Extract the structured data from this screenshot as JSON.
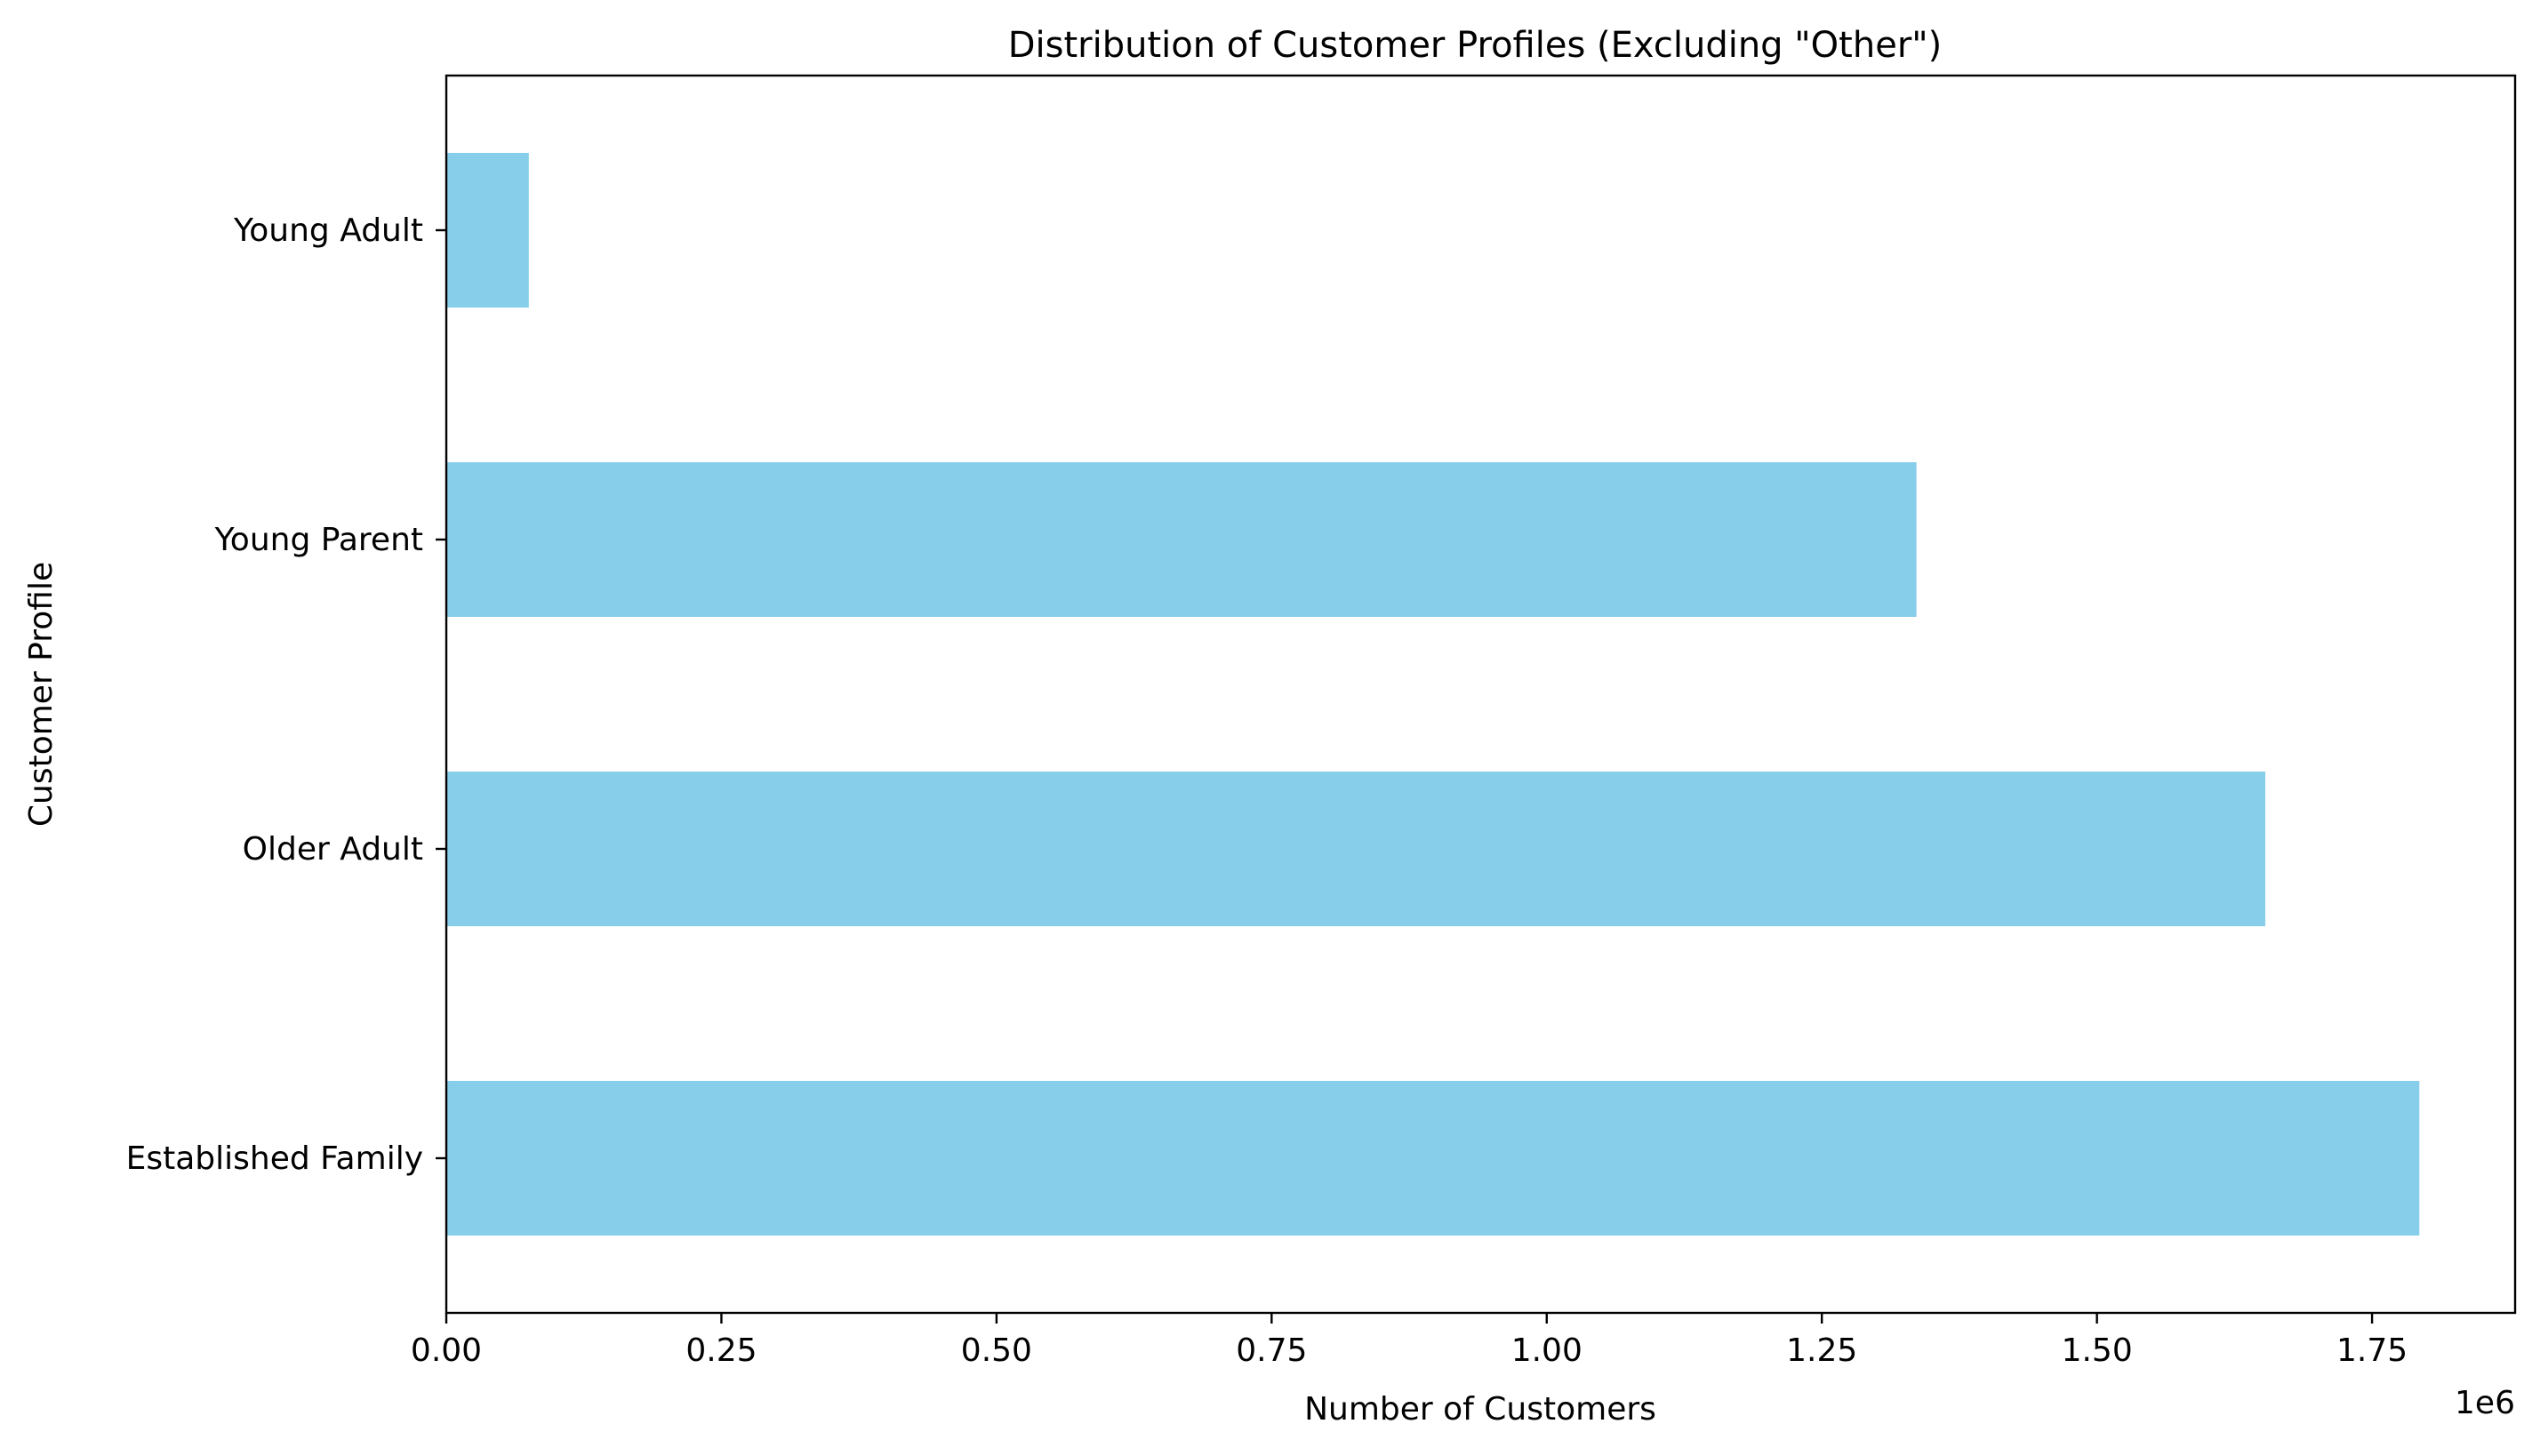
{
  "chart_data": {
    "type": "bar",
    "orientation": "horizontal",
    "title": "Distribution of Customer Profiles (Excluding \"Other\")",
    "xlabel": "Number of Customers",
    "ylabel": "Customer Profile",
    "x_offset_label": "1e6",
    "x_scale_factor": 1000000,
    "categories": [
      "Established Family",
      "Older Adult",
      "Young Parent",
      "Young Adult"
    ],
    "values": [
      1793000,
      1653000,
      1336000,
      75000
    ],
    "xlim": [
      0,
      1880000
    ],
    "xticks": [
      0,
      250000,
      500000,
      750000,
      1000000,
      1250000,
      1500000,
      1750000
    ],
    "xtick_labels": [
      "0.00",
      "0.25",
      "0.50",
      "0.75",
      "1.00",
      "1.25",
      "1.50",
      "1.75"
    ],
    "bar_color": "#87ceeb",
    "grid": false,
    "legend": "none"
  }
}
